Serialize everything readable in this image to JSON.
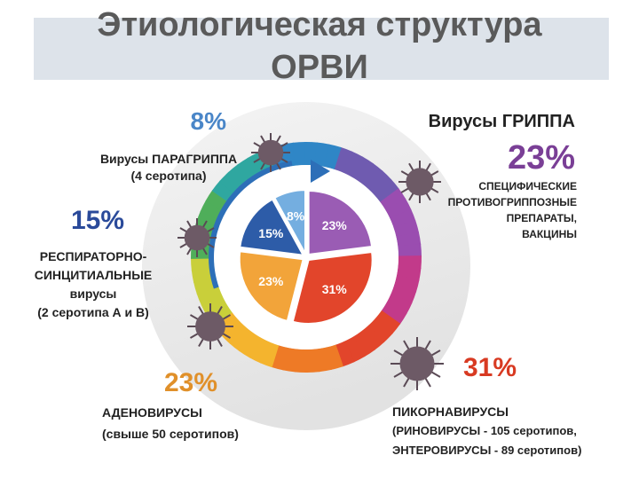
{
  "chart_data": {
    "type": "pie",
    "title": "Этиологическая структура ОРВИ",
    "values": [
      23,
      31,
      23,
      15,
      8
    ],
    "value_labels": [
      "23%",
      "31%",
      "23%",
      "15%",
      "8%"
    ],
    "colors": [
      "#9a5cb4",
      "#e2452b",
      "#f2a43a",
      "#2d5ca8",
      "#74aee0"
    ],
    "labels": [
      [
        "Вирусы ГРИППА",
        "СПЕЦИФИЧЕСКИЕ",
        "ПРОТИВОГРИППОЗНЫЕ",
        "ПРЕПАРАТЫ,",
        "ВАКЦИНЫ"
      ],
      [
        "ПИКОРНАВИРУСЫ",
        "(РИНОВИРУСЫ - 105 серотипов,",
        "ЭНТЕРОВИРУСЫ - 89 серотипов)"
      ],
      [
        "АДЕНОВИРУСЫ",
        "(свыше 50 серотипов)"
      ],
      [
        "РЕСПИРАТОРНО-",
        "СИНЦИТИАЛЬНЫЕ",
        "вирусы",
        "(2 серотипа А и В)"
      ],
      [
        "Вирусы ПАРАГРИППА",
        "(4 серотипа)"
      ]
    ]
  }
}
